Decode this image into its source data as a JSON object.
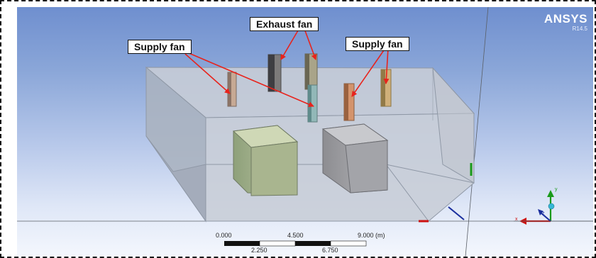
{
  "callouts": {
    "exhaust": "Exhaust fan",
    "supply_left": "Supply fan",
    "supply_right": "Supply fan"
  },
  "brand": {
    "name": "ANSYS",
    "version": "R14.5"
  },
  "scale_bar": {
    "top_labels": [
      "0.000",
      "4.500",
      "9.000 (m)"
    ],
    "bottom_labels": [
      "2.250",
      "6.750"
    ]
  },
  "axis_triad": {
    "x_label": "x",
    "y_label": "y",
    "z_label": "z"
  },
  "colors": {
    "annotation_arrow": "#e8231c",
    "triad_y": "#1a9a1a",
    "triad_x": "#cc1111",
    "triad_z": "#1b2f9e"
  }
}
